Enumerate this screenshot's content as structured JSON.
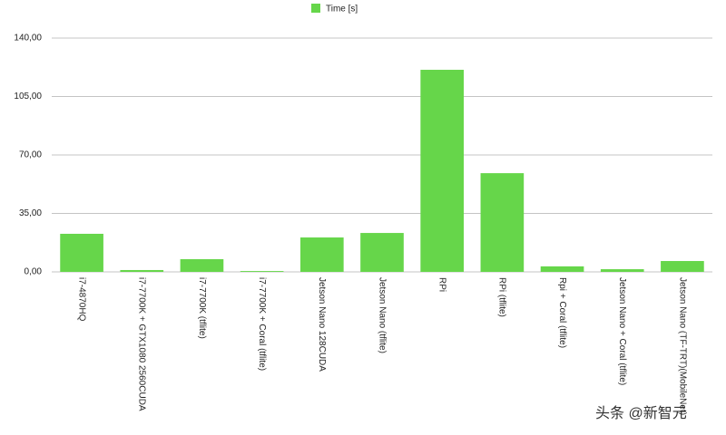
{
  "chart_data": {
    "type": "bar",
    "legend": "Time [s]",
    "categories": [
      "i7-4870HQ",
      "i7-7700K + GTX1080 2560CUDA",
      "i7-7700K (tflite)",
      "i7-7700K + Coral (tflite)",
      "Jetson Nano 128CUDA",
      "Jetson Nano (tflite)",
      "RPi",
      "RPi (tflite)",
      "Rpi + Coral (tflite)",
      "Jetson Nano + Coral (tflite)",
      "Jetson Nano (TF-TRT)(MobileNet)"
    ],
    "values": [
      22.8,
      1.1,
      7.6,
      0.5,
      20.6,
      23.3,
      121,
      59.1,
      3.3,
      1.6,
      6.5
    ],
    "color": "#66d64a",
    "ylim": [
      0,
      140
    ],
    "yticks": [
      {
        "value": 0,
        "label": "0,00"
      },
      {
        "value": 35,
        "label": "35,00"
      },
      {
        "value": 70,
        "label": "70,00"
      },
      {
        "value": 105,
        "label": "105,00"
      },
      {
        "value": 140,
        "label": "140,00"
      }
    ],
    "grid": true,
    "watermark": "头条 @新智元"
  }
}
